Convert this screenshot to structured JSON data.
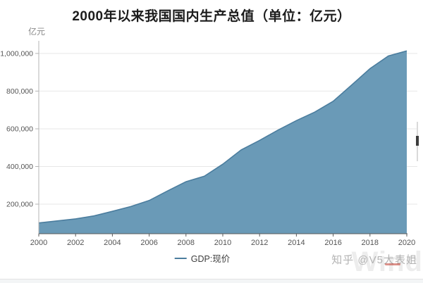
{
  "header": {
    "title": "2000年以来我国国内生产总值（单位：亿元）"
  },
  "chart": {
    "unit_label": "亿元",
    "legend_label": "GDP:现价"
  },
  "watermark": {
    "text": "知乎 @V5大表姐",
    "brand": "Wind"
  },
  "colors": {
    "area_fill": "#6a9ab7",
    "line": "#4b7d9e",
    "grid": "#e7e7e7",
    "axis_x": "#5a5a5a",
    "axis_y": "#b5b5b5",
    "tick_text": "#555555",
    "title_text": "#1c1c1c"
  },
  "chart_data": {
    "type": "area",
    "title": "2000年以来我国国内生产总值（单位：亿元）",
    "xlabel": "",
    "ylabel": "亿元",
    "x": [
      2000,
      2001,
      2002,
      2003,
      2004,
      2005,
      2006,
      2007,
      2008,
      2009,
      2010,
      2011,
      2012,
      2013,
      2014,
      2015,
      2016,
      2017,
      2018,
      2019,
      2020
    ],
    "series": [
      {
        "name": "GDP:现价",
        "values": [
          100280,
          110863,
          121717,
          137422,
          161840,
          187319,
          219439,
          270092,
          319245,
          348518,
          412119,
          487940,
          538580,
          592963,
          643563,
          688858,
          746395,
          832036,
          919281,
          986515,
          1013567
        ]
      }
    ],
    "xticks": [
      2000,
      2002,
      2004,
      2006,
      2008,
      2010,
      2012,
      2014,
      2016,
      2018,
      2020
    ],
    "ytick_values": [
      200000,
      400000,
      600000,
      800000,
      1000000
    ],
    "ytick_labels": [
      "200,000",
      "400,000",
      "600,000",
      "800,000",
      "1,000,000"
    ],
    "ylim": [
      43000,
      1067000
    ],
    "xlim": [
      2000,
      2020
    ],
    "grid": true,
    "legend_position": "bottom"
  }
}
